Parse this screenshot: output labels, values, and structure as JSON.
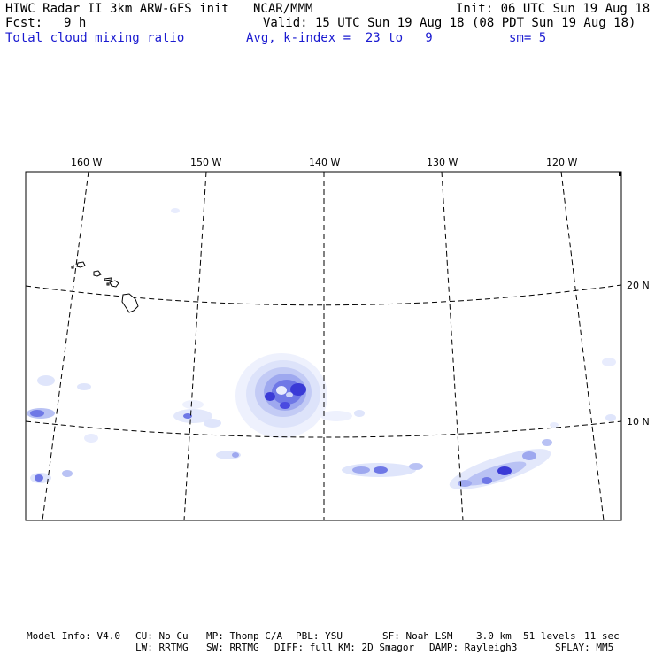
{
  "header": {
    "title": "HIWC Radar II 3km ARW-GFS init",
    "org": "NCAR/MMM",
    "init": "Init: 06 UTC Sun 19 Aug 18",
    "fcst_label": "Fcst:",
    "fcst_value": "9 h",
    "valid": "Valid: 15 UTC Sun 19 Aug 18 (08 PDT Sun 19 Aug 18)",
    "field": "Total cloud mixing ratio",
    "avg": "Avg, k-index =  23 to   9",
    "sm": "sm= 5"
  },
  "map": {
    "lon_labels": [
      "160 W",
      "150 W",
      "140 W",
      "130 W",
      "120 W"
    ],
    "lat_labels": [
      "20 N",
      "10 N"
    ]
  },
  "colors": {
    "text_blue": "#1a1ad0",
    "cloud_light": "#e3e8fb",
    "cloud_mid": "#b9c2f4",
    "cloud_strong": "#6f78e6",
    "cloud_core": "#3a3ad6"
  },
  "footer": {
    "line1": [
      "Model Info: V4.0",
      "CU: No Cu",
      "MP: Thomp C/A",
      "PBL: YSU",
      "SF: Noah LSM",
      "3.0 km",
      "51 levels",
      "11 sec"
    ],
    "line2": [
      "LW: RRTMG",
      "SW: RRTMG",
      "DIFF: full",
      "KM: 2D Smagor",
      "DAMP: Rayleigh3",
      "SFLAY: MM5"
    ]
  }
}
